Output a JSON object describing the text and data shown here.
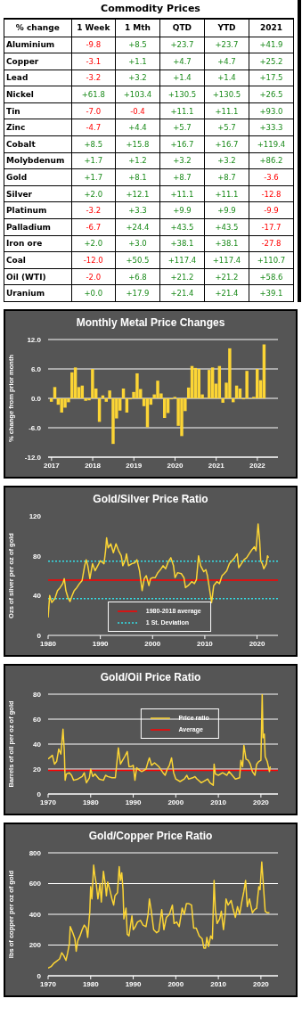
{
  "chart_data": [
    {
      "type": "heatmap",
      "title": "Commodity Prices",
      "ylabel": "% change",
      "categories": [
        "1 Week",
        "1 Mth",
        "QTD",
        "YTD",
        "2021"
      ],
      "y_categories": [
        "Aluminium",
        "Copper",
        "Lead",
        "Nickel",
        "Tin",
        "Zinc",
        "Cobalt",
        "Molybdenum",
        "Gold",
        "Silver",
        "Platinum",
        "Palladium",
        "Iron ore",
        "Coal",
        "Oil (WTI)",
        "Uranium"
      ],
      "cells": [
        [
          -9.8,
          8.5,
          23.7,
          23.7,
          41.9
        ],
        [
          -3.1,
          1.1,
          4.7,
          4.7,
          25.2
        ],
        [
          -3.2,
          3.2,
          1.4,
          1.4,
          17.5
        ],
        [
          61.8,
          103.4,
          130.5,
          130.5,
          26.5
        ],
        [
          -7.0,
          -0.4,
          11.1,
          11.1,
          93.0
        ],
        [
          -4.7,
          4.4,
          5.7,
          5.7,
          33.3
        ],
        [
          8.5,
          15.8,
          16.7,
          16.7,
          119.4
        ],
        [
          1.7,
          1.2,
          3.2,
          3.2,
          86.2
        ],
        [
          1.7,
          8.1,
          8.7,
          8.7,
          -3.6
        ],
        [
          2.0,
          12.1,
          11.1,
          11.1,
          -12.8
        ],
        [
          -3.2,
          3.3,
          9.9,
          9.9,
          -9.9
        ],
        [
          -6.7,
          24.4,
          43.5,
          43.5,
          -17.7
        ],
        [
          2.0,
          3.0,
          38.1,
          38.1,
          -27.8
        ],
        [
          -12.0,
          50.5,
          117.4,
          117.4,
          110.7
        ],
        [
          -2.0,
          6.8,
          21.2,
          21.2,
          58.6
        ],
        [
          0.0,
          17.9,
          21.4,
          21.4,
          39.1
        ]
      ],
      "cell_labels": [
        [
          "-9.8",
          "+8.5",
          "+23.7",
          "+23.7",
          "+41.9"
        ],
        [
          "-3.1",
          "+1.1",
          "+4.7",
          "+4.7",
          "+25.2"
        ],
        [
          "-3.2",
          "+3.2",
          "+1.4",
          "+1.4",
          "+17.5"
        ],
        [
          "+61.8",
          "+103.4",
          "+130.5",
          "+130.5",
          "+26.5"
        ],
        [
          "-7.0",
          "-0.4",
          "+11.1",
          "+11.1",
          "+93.0"
        ],
        [
          "-4.7",
          "+4.4",
          "+5.7",
          "+5.7",
          "+33.3"
        ],
        [
          "+8.5",
          "+15.8",
          "+16.7",
          "+16.7",
          "+119.4"
        ],
        [
          "+1.7",
          "+1.2",
          "+3.2",
          "+3.2",
          "+86.2"
        ],
        [
          "+1.7",
          "+8.1",
          "+8.7",
          "+8.7",
          "-3.6"
        ],
        [
          "+2.0",
          "+12.1",
          "+11.1",
          "+11.1",
          "-12.8"
        ],
        [
          "-3.2",
          "+3.3",
          "+9.9",
          "+9.9",
          "-9.9"
        ],
        [
          "-6.7",
          "+24.4",
          "+43.5",
          "+43.5",
          "-17.7"
        ],
        [
          "+2.0",
          "+3.0",
          "+38.1",
          "+38.1",
          "-27.8"
        ],
        [
          "-12.0",
          "+50.5",
          "+117.4",
          "+117.4",
          "+110.7"
        ],
        [
          "-2.0",
          "+6.8",
          "+21.2",
          "+21.2",
          "+58.6"
        ],
        [
          "+0.0",
          "+17.9",
          "+21.4",
          "+21.4",
          "+39.1"
        ]
      ]
    },
    {
      "type": "bar",
      "title": "Monthly Metal Price Changes",
      "ylabel": "% change from prior month",
      "color": "#fcd535",
      "grid": "y",
      "x": [
        "2017-01",
        "2017-02",
        "2017-03",
        "2017-04",
        "2017-05",
        "2017-06",
        "2017-07",
        "2017-08",
        "2017-09",
        "2017-10",
        "2017-11",
        "2017-12",
        "2018-01",
        "2018-02",
        "2018-03",
        "2018-04",
        "2018-05",
        "2018-06",
        "2018-07",
        "2018-08",
        "2018-09",
        "2018-10",
        "2018-11",
        "2018-12",
        "2019-01",
        "2019-02",
        "2019-03",
        "2019-04",
        "2019-05",
        "2019-06",
        "2019-07",
        "2019-08",
        "2019-09",
        "2019-10",
        "2019-11",
        "2019-12",
        "2020-01",
        "2020-02",
        "2020-03",
        "2020-04",
        "2020-05",
        "2020-06",
        "2020-07",
        "2020-08",
        "2020-09",
        "2020-10",
        "2020-11",
        "2020-12",
        "2021-01",
        "2021-02",
        "2021-03",
        "2021-04",
        "2021-05",
        "2021-06",
        "2021-07",
        "2021-08",
        "2021-09",
        "2021-10",
        "2021-11",
        "2021-12",
        "2022-01",
        "2022-02",
        "2022-03"
      ],
      "values": [
        -0.7,
        2.3,
        -1.3,
        -2.9,
        -1.9,
        -0.8,
        5.3,
        6.3,
        2.3,
        2.6,
        -0.5,
        -0.4,
        6.0,
        2.0,
        -4.8,
        0.6,
        -0.7,
        1.6,
        -9.3,
        -4.1,
        -2.5,
        2.0,
        -2.9,
        -0.2,
        1.3,
        5.1,
        1.9,
        -1.6,
        -5.9,
        -1.3,
        0.8,
        3.6,
        1.0,
        -4.0,
        -3.0,
        -0.2,
        0.3,
        -5.6,
        -7.7,
        -2.6,
        2.2,
        6.6,
        6.2,
        6.0,
        0.8,
        0.1,
        5.8,
        6.3,
        3.0,
        6.6,
        -0.9,
        3.2,
        10.2,
        -0.8,
        2.6,
        2.0,
        -0.2,
        5.6,
        -0.1,
        0.3,
        6.0,
        3.7,
        11.0
      ],
      "xlim": [
        "2016-12",
        "2022-07"
      ],
      "xticks": [
        "2017",
        "2018",
        "2019",
        "2020",
        "2021",
        "2022"
      ],
      "ylim": [
        -12,
        12
      ],
      "yticks": [
        {
          "value": -12,
          "label": "-12.0"
        },
        {
          "value": -6,
          "label": "-6.0"
        },
        {
          "value": 0,
          "label": "0.0"
        },
        {
          "value": 6,
          "label": "6.0"
        },
        {
          "value": 12,
          "label": "12.0"
        }
      ]
    },
    {
      "type": "line",
      "title": "Gold/Silver Price Ratio",
      "ylabel": "Ozs of silver per oz of gold",
      "color": "#fcd535",
      "legend": "bottom",
      "x": [
        1980.0,
        1980.3,
        1980.7,
        1981.3,
        1981.8,
        1982.3,
        1982.8,
        1983.1,
        1983.4,
        1983.8,
        1984.2,
        1984.6,
        1985,
        1985.5,
        1986,
        1986.5,
        1987,
        1987.3,
        1987.6,
        1988,
        1988.5,
        1989,
        1989.5,
        1990,
        1990.7,
        1991,
        1991.2,
        1991.5,
        1992,
        1992.5,
        1993,
        1993.5,
        1994,
        1994.3,
        1994.8,
        1995,
        1995.4,
        1996,
        1996.6,
        1997,
        1997.5,
        1998,
        1998.4,
        1998.8,
        1999.3,
        1999.6,
        2000,
        2000.5,
        2001,
        2001.5,
        2002,
        2002.5,
        2003,
        2003.5,
        2004,
        2004.3,
        2004.8,
        2005.5,
        2006,
        2006.3,
        2006.8,
        2007.5,
        2008,
        2008.4,
        2008.8,
        2009.2,
        2009.8,
        2010.2,
        2010.5,
        2011.0,
        2011.3,
        2011.7,
        2012.3,
        2012.8,
        2013.3,
        2013.7,
        2014.2,
        2014.7,
        2015.2,
        2015.7,
        2016.2,
        2016.5,
        2017,
        2017.5,
        2018,
        2018.5,
        2019,
        2019.5,
        2019.8,
        2020.2,
        2020.5,
        2020.7,
        2021,
        2021.3,
        2021.8,
        2022,
        2022.2
      ],
      "values": [
        18,
        40,
        33,
        37,
        45,
        48,
        52,
        57,
        45,
        38,
        34,
        40,
        45,
        48,
        52,
        55,
        70,
        76,
        70,
        57,
        72,
        65,
        70,
        75,
        72,
        85,
        98,
        88,
        92,
        83,
        92,
        85,
        80,
        70,
        76,
        82,
        70,
        72,
        73,
        76,
        65,
        45,
        57,
        60,
        50,
        57,
        58,
        58,
        63,
        66,
        70,
        67,
        74,
        78,
        70,
        58,
        63,
        62,
        58,
        48,
        50,
        54,
        52,
        56,
        80,
        70,
        64,
        66,
        60,
        43,
        33,
        50,
        54,
        52,
        60,
        62,
        65,
        72,
        75,
        78,
        82,
        68,
        72,
        76,
        78,
        82,
        86,
        89,
        85,
        112,
        95,
        75,
        72,
        67,
        72,
        80,
        78
      ],
      "xlim": [
        1980,
        2024
      ],
      "xticks": [
        1980,
        1990,
        2000,
        2010,
        2020
      ],
      "ylim": [
        0,
        120
      ],
      "yticks": [
        0,
        40,
        80,
        120
      ],
      "ref_lines": [
        {
          "axis": "y",
          "value": 55.5,
          "label": "1980-2018 average",
          "color": "#ff0000",
          "line_style": "solid"
        },
        {
          "axis": "y",
          "value": 74.5,
          "label": "1 St. Deviation",
          "color": "#33e0e8",
          "line_style": "dotted"
        },
        {
          "axis": "y",
          "value": 37,
          "color": "#33e0e8",
          "line_style": "dotted"
        }
      ]
    },
    {
      "type": "line",
      "title": "Gold/Oil Price Ratio",
      "ylabel": "Barrels of oil per oz of gold",
      "grid": "y",
      "legend": "top",
      "series": [
        {
          "name": "Price ratio",
          "color": "#fcd535",
          "x": [
            1970,
            1971,
            1971.5,
            1972,
            1972.5,
            1973,
            1973.5,
            1973.8,
            1974,
            1974.3,
            1975,
            1975.5,
            1976,
            1977,
            1978,
            1978.5,
            1979,
            1979.7,
            1980,
            1980.5,
            1981,
            1982,
            1983,
            1983.5,
            1984,
            1985,
            1985.8,
            1986.3,
            1986.5,
            1987,
            1987.5,
            1988,
            1988.6,
            1989,
            1989.5,
            1990,
            1990.4,
            1990.8,
            1991.5,
            1992,
            1993,
            1993.5,
            1993.8,
            1994.3,
            1995,
            1996,
            1997,
            1997.5,
            1998,
            1998.5,
            1999,
            1999.5,
            2000,
            2001,
            2002,
            2002.6,
            2003,
            2004,
            2004.5,
            2005,
            2006,
            2007,
            2007.5,
            2008,
            2008.8,
            2009,
            2009.3,
            2010,
            2011,
            2012,
            2012.5,
            2013,
            2014,
            2015,
            2015.3,
            2015.7,
            2016,
            2016.5,
            2017,
            2017.5,
            2018,
            2018.6,
            2019,
            2019.5,
            2020,
            2020.3,
            2020.5,
            2020.8,
            2021,
            2021.5,
            2022,
            2022.2
          ],
          "values": [
            28,
            31,
            24,
            26,
            36,
            32,
            52,
            35,
            11,
            16,
            17,
            15,
            11,
            12,
            14,
            17,
            9,
            13,
            20,
            14,
            16,
            12,
            11,
            15,
            14,
            13,
            13,
            30,
            37,
            24,
            27,
            30,
            34,
            22,
            22,
            23,
            11,
            21,
            19,
            18,
            20,
            26,
            29,
            23,
            25,
            22,
            17,
            15,
            20,
            23,
            29,
            17,
            12,
            10,
            12,
            15,
            12,
            13,
            14,
            12,
            9,
            11,
            12,
            9,
            7,
            24,
            16,
            15,
            17,
            15,
            18,
            16,
            12,
            13,
            27,
            22,
            39,
            28,
            27,
            24,
            18,
            15,
            24,
            26,
            27,
            80,
            45,
            48,
            30,
            26,
            18,
            22
          ]
        }
      ],
      "xlim": [
        1970,
        2024
      ],
      "xticks": [
        1970,
        1980,
        1990,
        2000,
        2010,
        2020
      ],
      "ylim": [
        0,
        80
      ],
      "yticks": [
        0,
        20,
        40,
        60,
        80
      ],
      "ref_lines": [
        {
          "axis": "y",
          "value": 19,
          "label": "Average",
          "color": "#ff0000",
          "line_style": "solid"
        }
      ]
    },
    {
      "type": "line",
      "title": "Gold/Copper Price Ratio",
      "ylabel": "lbs of copper per oz of gold",
      "color": "#fcd535",
      "grid": "y",
      "x": [
        1970,
        1970.7,
        1971.3,
        1972,
        1972.7,
        1973.2,
        1973.7,
        1974.2,
        1974.6,
        1975,
        1975.2,
        1975.8,
        1976.3,
        1976.6,
        1977,
        1977.5,
        1978,
        1978.5,
        1979,
        1979.3,
        1979.8,
        1980,
        1980.3,
        1980.7,
        1981,
        1981.3,
        1981.7,
        1982.2,
        1982.5,
        1983,
        1983.4,
        1983.7,
        1984,
        1984.5,
        1985,
        1985.4,
        1985.7,
        1986.3,
        1986.7,
        1987,
        1987.3,
        1987.6,
        1987.8,
        1988.3,
        1988.6,
        1989,
        1989.7,
        1990,
        1990.5,
        1991,
        1991.7,
        1992.3,
        1993,
        1993.5,
        1993.8,
        1994.2,
        1994.8,
        1995.5,
        1996,
        1996.7,
        1997.2,
        1997.8,
        1998.5,
        1999.2,
        1999.6,
        2000.2,
        2000.8,
        2001.5,
        2002,
        2002.5,
        2003,
        2003.7,
        2004.2,
        2004.8,
        2005.5,
        2006.2,
        2006.6,
        2007,
        2007.3,
        2007.7,
        2008.2,
        2008.6,
        2009,
        2009.3,
        2009.7,
        2010.3,
        2010.7,
        2011.2,
        2011.6,
        2011.8,
        2012.3,
        2013,
        2013.5,
        2014,
        2014.5,
        2015,
        2015.5,
        2016,
        2016.4,
        2016.8,
        2017.3,
        2018,
        2018.5,
        2019,
        2019.5,
        2019.8,
        2020.2,
        2020.5,
        2021,
        2021.5,
        2022
      ],
      "values": [
        50,
        60,
        80,
        95,
        110,
        150,
        130,
        100,
        150,
        210,
        320,
        280,
        240,
        160,
        230,
        260,
        300,
        330,
        310,
        250,
        420,
        580,
        500,
        720,
        650,
        600,
        500,
        600,
        480,
        680,
        600,
        520,
        610,
        560,
        500,
        460,
        520,
        540,
        710,
        620,
        670,
        560,
        370,
        440,
        270,
        260,
        390,
        300,
        320,
        350,
        360,
        330,
        320,
        400,
        500,
        430,
        300,
        280,
        290,
        430,
        300,
        380,
        400,
        460,
        340,
        350,
        320,
        440,
        400,
        470,
        470,
        460,
        310,
        310,
        260,
        240,
        180,
        180,
        250,
        190,
        260,
        240,
        620,
        430,
        340,
        370,
        420,
        300,
        400,
        500,
        460,
        490,
        430,
        380,
        450,
        400,
        480,
        550,
        620,
        450,
        500,
        410,
        430,
        440,
        580,
        560,
        740,
        620,
        420,
        410,
        410
      ],
      "xlim": [
        1970,
        2024
      ],
      "xticks": [
        1970,
        1980,
        1990,
        2000,
        2010,
        2020
      ],
      "ylim": [
        0,
        800
      ],
      "yticks": [
        0,
        200,
        400,
        600,
        800
      ]
    }
  ]
}
